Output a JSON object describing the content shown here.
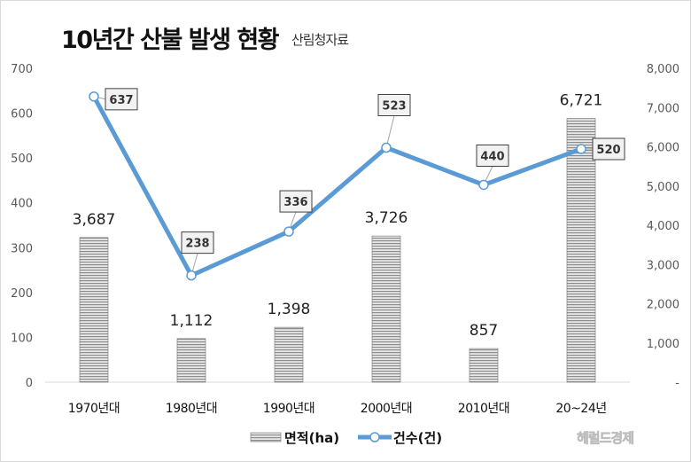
{
  "title": "10년간 산불 발생 현황",
  "source": "산림청자료",
  "watermark": "헤럴드경제",
  "chart_data": {
    "type": "bar+line",
    "title": "10년간 산불 발생 현황",
    "categories": [
      "1970년대",
      "1980년대",
      "1990년대",
      "2000년대",
      "2010년대",
      "20~24년"
    ],
    "series": [
      {
        "name": "면적(ha)",
        "type": "bar",
        "axis": "right",
        "values": [
          3687,
          1112,
          1398,
          3726,
          857,
          6721
        ],
        "labels": [
          "3,687",
          "1,112",
          "1,398",
          "3,726",
          "857",
          "6,721"
        ],
        "color": "#a6a6a6"
      },
      {
        "name": "건수(건)",
        "type": "line",
        "axis": "left",
        "values": [
          637,
          238,
          336,
          523,
          440,
          520
        ],
        "labels": [
          "637",
          "238",
          "336",
          "523",
          "440",
          "520"
        ],
        "color": "#5b9bd5"
      }
    ],
    "left_axis": {
      "range": [
        0,
        700
      ],
      "ticks": [
        "0",
        "100",
        "200",
        "300",
        "400",
        "500",
        "600",
        "700"
      ]
    },
    "right_axis": {
      "range": [
        0,
        8000
      ],
      "ticks": [
        "-",
        "1,000",
        "2,000",
        "3,000",
        "4,000",
        "5,000",
        "6,000",
        "7,000",
        "8,000"
      ]
    },
    "grid": false,
    "legend": "bottom"
  }
}
